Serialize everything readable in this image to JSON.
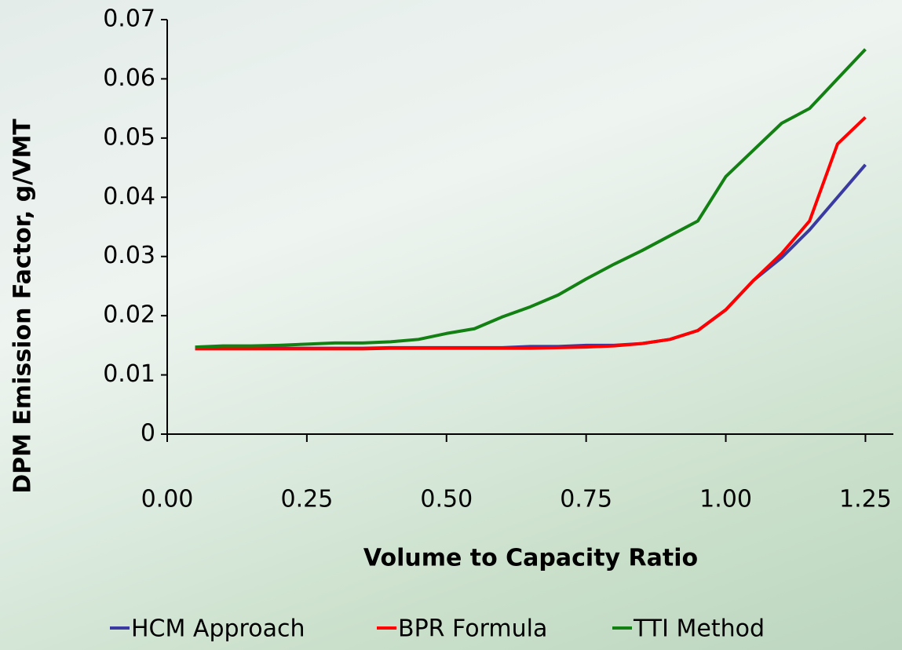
{
  "chart_data": {
    "type": "line",
    "x_label": "Volume to Capacity Ratio",
    "y_label": "DPM Emission Factor, g/VMT",
    "x": [
      0.05,
      0.1,
      0.15,
      0.2,
      0.25,
      0.3,
      0.35,
      0.4,
      0.45,
      0.5,
      0.55,
      0.6,
      0.65,
      0.7,
      0.75,
      0.8,
      0.85,
      0.9,
      0.95,
      1.0,
      1.05,
      1.1,
      1.15,
      1.2,
      1.25
    ],
    "series": [
      {
        "name": "HCM Approach",
        "color": "#3a3aa0",
        "values": [
          0.0145,
          0.0145,
          0.0145,
          0.0145,
          0.0145,
          0.0145,
          0.0145,
          0.0146,
          0.0146,
          0.0146,
          0.0146,
          0.0146,
          0.0148,
          0.0148,
          0.015,
          0.015,
          0.0153,
          0.016,
          0.0175,
          0.021,
          0.026,
          0.0298,
          0.0345,
          0.04,
          0.0455
        ]
      },
      {
        "name": "BPR Formula",
        "color": "#ff0000",
        "values": [
          0.0144,
          0.0144,
          0.0144,
          0.0144,
          0.0144,
          0.0144,
          0.0144,
          0.0145,
          0.0145,
          0.0145,
          0.0145,
          0.0145,
          0.0145,
          0.0146,
          0.0147,
          0.0149,
          0.0153,
          0.016,
          0.0175,
          0.021,
          0.026,
          0.0305,
          0.036,
          0.049,
          0.0535
        ]
      },
      {
        "name": "TTI Method",
        "color": "#138013",
        "values": [
          0.0147,
          0.0149,
          0.0149,
          0.015,
          0.0152,
          0.0154,
          0.0154,
          0.0156,
          0.016,
          0.017,
          0.0178,
          0.0198,
          0.0215,
          0.0235,
          0.0262,
          0.0287,
          0.031,
          0.0335,
          0.036,
          0.0435,
          0.048,
          0.0525,
          0.055,
          0.06,
          0.065
        ]
      }
    ],
    "xlim": [
      0,
      1.3
    ],
    "xticks": [
      {
        "value": 0,
        "label": "0.00"
      },
      {
        "value": 0.25,
        "label": "0.25"
      },
      {
        "value": 0.5,
        "label": "0.50"
      },
      {
        "value": 0.75,
        "label": "0.75"
      },
      {
        "value": 1,
        "label": "1.00"
      },
      {
        "value": 1.25,
        "label": "1.25"
      }
    ],
    "ylim": [
      0,
      0.07
    ],
    "yticks": [
      0,
      0.01,
      0.02,
      0.03,
      0.04,
      0.05,
      0.06,
      0.07
    ],
    "legend": "bottom"
  }
}
